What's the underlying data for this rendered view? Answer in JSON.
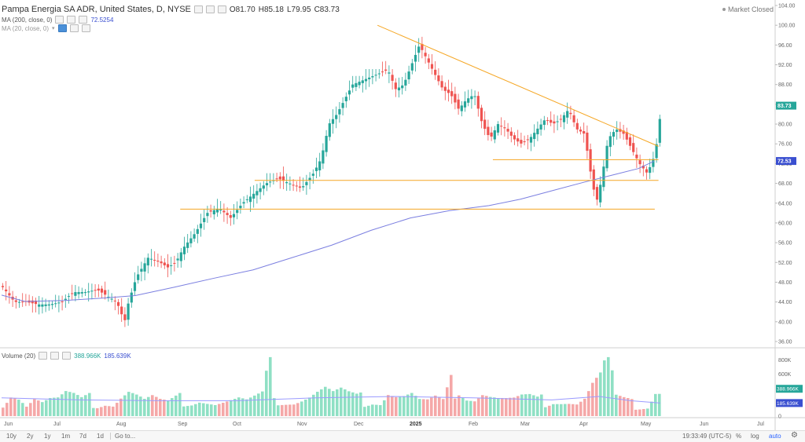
{
  "legend": {
    "title": "Pampa Energia SA ADR, United States, D, NYSE",
    "open": "O81.70",
    "high": "H85.18",
    "low": "L79.95",
    "close": "C83.73",
    "ma200_label": "MA (200, close, 0)",
    "ma200_value": "72.5254",
    "ma20_label": "MA (20, close, 0)",
    "market_status": "Market Closed"
  },
  "volume_legend": {
    "label": "Volume (20)",
    "value": "388.966K",
    "ma_value": "185.639K"
  },
  "price_axis": {
    "ticks": [
      "104.00",
      "100.00",
      "96.00",
      "92.00",
      "88.00",
      "84.00",
      "80.00",
      "76.00",
      "72.00",
      "68.00",
      "64.00",
      "60.00",
      "56.00",
      "52.00",
      "48.00",
      "44.00",
      "40.00",
      "36.00"
    ],
    "last_price": "83.73",
    "ma_price": "72.53"
  },
  "volume_axis": {
    "ticks": [
      "800K",
      "600K",
      "400K",
      "200K",
      "0"
    ],
    "last_volume": "388.966K",
    "ma_volume": "185.639K"
  },
  "time_axis": {
    "labels": [
      "Jun",
      "Jul",
      "Aug",
      "Sep",
      "Oct",
      "Nov",
      "Dec",
      "2025",
      "Feb",
      "Mar",
      "Apr",
      "May",
      "Jun",
      "Jul"
    ]
  },
  "bottom_bar": {
    "ranges": [
      "10y",
      "2y",
      "1y",
      "1m",
      "7d",
      "1d"
    ],
    "goto": "Go to...",
    "time": "19:33:49 (UTC-5)",
    "percent": "%",
    "log": "log",
    "auto": "auto"
  },
  "colors": {
    "up": "#26a69a",
    "down": "#ef5350",
    "ma200": "#7b7fe0",
    "trendline": "#f5a623",
    "volume_up": "#8fe0c4",
    "volume_down": "#f5a8a8",
    "volume_ma": "#9b9bff"
  },
  "chart_data": {
    "type": "candlestick",
    "price_range": [
      36,
      104
    ],
    "volume_range_k": [
      0,
      850
    ],
    "trend_lines": [
      {
        "kind": "resistance",
        "from": {
          "date": "2024-12-20",
          "price": 100.0
        },
        "to": {
          "date": "2025-05-20",
          "price": 75.5
        }
      },
      {
        "kind": "support",
        "from": {
          "date": "2025-02-20",
          "price": 72.8
        },
        "to": {
          "date": "2025-05-20",
          "price": 72.8
        }
      },
      {
        "kind": "support",
        "from": {
          "date": "2024-10-15",
          "price": 68.6
        },
        "to": {
          "date": "2025-05-20",
          "price": 68.6
        }
      },
      {
        "kind": "support",
        "from": {
          "date": "2024-09-05",
          "price": 62.8
        },
        "to": {
          "date": "2025-05-18",
          "price": 62.8
        }
      }
    ],
    "ma200": [
      [
        0,
        45.4
      ],
      [
        30,
        44.1
      ],
      [
        80,
        44.3
      ],
      [
        130,
        44.8
      ],
      [
        170,
        45.3
      ],
      [
        220,
        47.0
      ],
      [
        270,
        48.8
      ],
      [
        320,
        50.5
      ],
      [
        370,
        53.0
      ],
      [
        420,
        55.5
      ],
      [
        470,
        58.5
      ],
      [
        520,
        61.0
      ],
      [
        570,
        62.5
      ],
      [
        620,
        63.5
      ],
      [
        660,
        64.8
      ],
      [
        700,
        66.5
      ],
      [
        740,
        68.2
      ],
      [
        780,
        69.8
      ],
      [
        810,
        71.0
      ],
      [
        830,
        72.5
      ]
    ],
    "close_path": [
      [
        0,
        47
      ],
      [
        15,
        44
      ],
      [
        30,
        44
      ],
      [
        45,
        43.5
      ],
      [
        60,
        43.5
      ],
      [
        75,
        44
      ],
      [
        90,
        46
      ],
      [
        105,
        46
      ],
      [
        120,
        46.5
      ],
      [
        135,
        45
      ],
      [
        145,
        44
      ],
      [
        155,
        40
      ],
      [
        160,
        44
      ],
      [
        170,
        49
      ],
      [
        185,
        53
      ],
      [
        200,
        52
      ],
      [
        210,
        51
      ],
      [
        220,
        52
      ],
      [
        230,
        55
      ],
      [
        245,
        58
      ],
      [
        260,
        62
      ],
      [
        275,
        63
      ],
      [
        290,
        61
      ],
      [
        305,
        64
      ],
      [
        320,
        66
      ],
      [
        335,
        68
      ],
      [
        350,
        69
      ],
      [
        365,
        68
      ],
      [
        380,
        67
      ],
      [
        395,
        70
      ],
      [
        405,
        73
      ],
      [
        415,
        80
      ],
      [
        425,
        82
      ],
      [
        435,
        85
      ],
      [
        445,
        88
      ],
      [
        460,
        89
      ],
      [
        475,
        90
      ],
      [
        490,
        91
      ],
      [
        500,
        87
      ],
      [
        510,
        88
      ],
      [
        520,
        92
      ],
      [
        530,
        96
      ],
      [
        540,
        93
      ],
      [
        550,
        90
      ],
      [
        560,
        87
      ],
      [
        570,
        86
      ],
      [
        580,
        83
      ],
      [
        590,
        85
      ],
      [
        600,
        86
      ],
      [
        610,
        80
      ],
      [
        620,
        77
      ],
      [
        630,
        80
      ],
      [
        640,
        79
      ],
      [
        650,
        77
      ],
      [
        660,
        76
      ],
      [
        670,
        77
      ],
      [
        680,
        79
      ],
      [
        690,
        81
      ],
      [
        700,
        80
      ],
      [
        710,
        81
      ],
      [
        720,
        83
      ],
      [
        730,
        79
      ],
      [
        740,
        78
      ],
      [
        748,
        70
      ],
      [
        755,
        64
      ],
      [
        762,
        69
      ],
      [
        770,
        77
      ],
      [
        780,
        79
      ],
      [
        790,
        78
      ],
      [
        800,
        75
      ],
      [
        810,
        72
      ],
      [
        820,
        70
      ],
      [
        830,
        74
      ],
      [
        838,
        83.7
      ]
    ],
    "volume_k": [
      [
        0,
        220
      ],
      [
        10,
        420
      ],
      [
        20,
        330
      ],
      [
        30,
        170
      ],
      [
        40,
        280
      ],
      [
        50,
        210
      ],
      [
        60,
        250
      ],
      [
        70,
        240
      ],
      [
        80,
        300
      ],
      [
        90,
        260
      ],
      [
        100,
        200
      ],
      [
        110,
        230
      ],
      [
        120,
        190
      ],
      [
        130,
        220
      ],
      [
        140,
        180
      ],
      [
        150,
        300
      ],
      [
        160,
        380
      ],
      [
        170,
        310
      ],
      [
        180,
        230
      ],
      [
        190,
        260
      ],
      [
        200,
        200
      ],
      [
        210,
        170
      ],
      [
        220,
        210
      ],
      [
        230,
        250
      ],
      [
        240,
        240
      ],
      [
        250,
        270
      ],
      [
        260,
        220
      ],
      [
        270,
        180
      ],
      [
        280,
        200
      ],
      [
        290,
        220
      ],
      [
        300,
        240
      ],
      [
        310,
        200
      ],
      [
        320,
        230
      ],
      [
        330,
        260
      ],
      [
        340,
        670
      ],
      [
        350,
        260
      ],
      [
        360,
        240
      ],
      [
        370,
        220
      ],
      [
        380,
        250
      ],
      [
        390,
        290
      ],
      [
        400,
        350
      ],
      [
        410,
        390
      ],
      [
        420,
        310
      ],
      [
        430,
        330
      ],
      [
        440,
        270
      ],
      [
        450,
        230
      ],
      [
        460,
        240
      ],
      [
        470,
        260
      ],
      [
        480,
        220
      ],
      [
        490,
        380
      ],
      [
        500,
        310
      ],
      [
        510,
        300
      ],
      [
        520,
        320
      ],
      [
        530,
        220
      ],
      [
        540,
        200
      ],
      [
        550,
        230
      ],
      [
        560,
        180
      ],
      [
        570,
        410
      ],
      [
        580,
        500
      ],
      [
        590,
        330
      ],
      [
        600,
        280
      ],
      [
        610,
        360
      ],
      [
        620,
        300
      ],
      [
        630,
        260
      ],
      [
        640,
        240
      ],
      [
        650,
        230
      ],
      [
        660,
        250
      ],
      [
        670,
        240
      ],
      [
        680,
        200
      ],
      [
        690,
        230
      ],
      [
        700,
        270
      ],
      [
        710,
        240
      ],
      [
        720,
        220
      ],
      [
        730,
        190
      ],
      [
        740,
        260
      ],
      [
        750,
        460
      ],
      [
        760,
        560
      ],
      [
        770,
        820
      ],
      [
        780,
        240
      ],
      [
        790,
        200
      ],
      [
        800,
        170
      ],
      [
        810,
        160
      ],
      [
        820,
        160
      ],
      [
        830,
        420
      ],
      [
        838,
        389
      ]
    ],
    "volume_ma_k": [
      [
        0,
        260
      ],
      [
        100,
        230
      ],
      [
        200,
        220
      ],
      [
        300,
        220
      ],
      [
        400,
        260
      ],
      [
        500,
        280
      ],
      [
        600,
        260
      ],
      [
        700,
        230
      ],
      [
        760,
        280
      ],
      [
        800,
        220
      ],
      [
        838,
        186
      ]
    ]
  }
}
